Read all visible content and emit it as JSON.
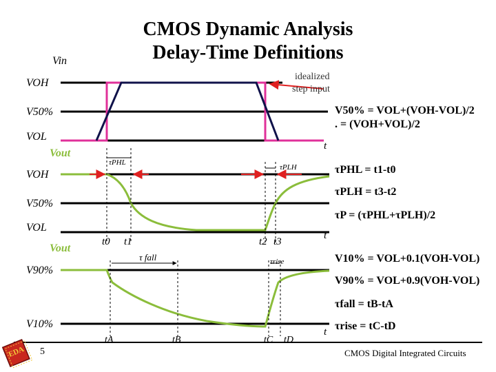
{
  "title": {
    "line1": "CMOS Dynamic Analysis",
    "line2": "Delay-Time Definitions"
  },
  "panel1": {
    "vin": "Vin",
    "voh": "VOH",
    "v50": "V50%",
    "vol": "VOL",
    "t": "t",
    "note1": "idealized",
    "note2": "step input"
  },
  "panel2": {
    "vout": "Vout",
    "voh": "VOH",
    "v50": "V50%",
    "vol": "VOL",
    "t": "t",
    "tphl": "τPHL",
    "tplh": "τPLH",
    "t0": "t0",
    "t1": "t1",
    "t2": "t2",
    "t3": "t3"
  },
  "panel3": {
    "vout": "Vout",
    "v90": "V90%",
    "v10": "V10%",
    "t": "t",
    "tfall": "τ fall",
    "trise": "τrise",
    "tA": "tA",
    "tB": "tB",
    "tC": "tC",
    "tD": "tD"
  },
  "equations": {
    "v50_a": "V50% = VOL+(VOH-VOL)/2",
    "v50_b": ".     = (VOH+VOL)/2",
    "tphl": "τPHL = t1-t0",
    "tplh": "τPLH = t3-t2",
    "tp": "τP  = (τPHL+τPLH)/2",
    "v10": "V10% = VOL+0.1(VOH-VOL)",
    "v90": "V90% = VOL+0.9(VOH-VOL)",
    "tfall": "τfall = tB-tA",
    "trise": "τrise = tC-tD"
  },
  "footer": {
    "page": "5",
    "course": "CMOS Digital Integrated Circuits",
    "logo": "EDA"
  },
  "colors": {
    "idealized": "#e0309a",
    "real_edge": "#10124a",
    "response": "#8bbd3b",
    "arrow": "#e02020",
    "axis": "#000000"
  }
}
